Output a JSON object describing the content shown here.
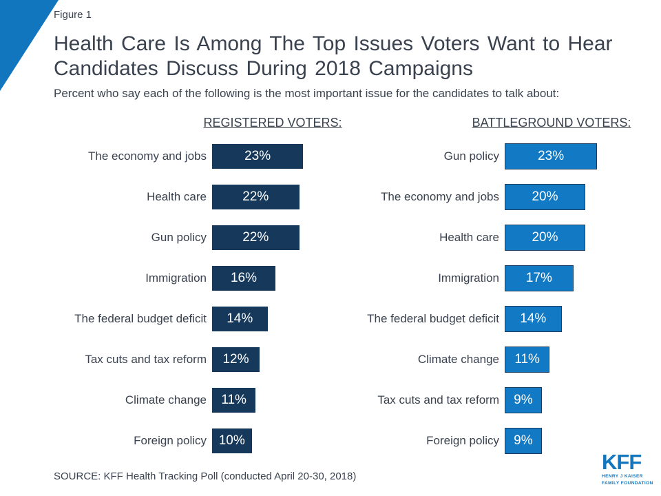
{
  "figure_label": "Figure 1",
  "header": {
    "title_lines": [
      "Health Care Is Among The Top Issues Voters Want to Hear",
      "Candidates Discuss During 2018 Campaigns"
    ],
    "subtitle": "Percent who say each of the following is the most important issue for the candidates to talk about:"
  },
  "colors": {
    "accent_blue": "#1276BE",
    "dark_navy_bar": "#16395B",
    "light_blue_bar": "#1279C4",
    "light_bar_border": "#1E3C5E",
    "text_dark": "#39424E"
  },
  "chart_data": [
    {
      "type": "bar",
      "orientation": "horizontal",
      "title": "REGISTERED VOTERS:",
      "categories": [
        "The economy and jobs",
        "Health care",
        "Gun policy",
        "Immigration",
        "The federal budget deficit",
        "Tax cuts and tax reform",
        "Climate change",
        "Foreign policy"
      ],
      "values": [
        23,
        22,
        22,
        16,
        14,
        12,
        11,
        10
      ],
      "value_suffix": "%",
      "xlim": [
        0,
        25
      ],
      "bar_color": "#16395B",
      "data_labels": "inside, white, centered",
      "grid": false,
      "axes_shown": false
    },
    {
      "type": "bar",
      "orientation": "horizontal",
      "title": "BATTLEGROUND VOTERS:",
      "categories": [
        "Gun policy",
        "The economy and jobs",
        "Health care",
        "Immigration",
        "The federal budget deficit",
        "Climate change",
        "Tax cuts and tax reform",
        "Foreign policy"
      ],
      "values": [
        23,
        20,
        20,
        17,
        14,
        11,
        9,
        9
      ],
      "value_suffix": "%",
      "xlim": [
        0,
        25
      ],
      "bar_color": "#1279C4",
      "bar_border_color": "#1E3C5E",
      "data_labels": "inside, white, centered",
      "grid": false,
      "axes_shown": false
    }
  ],
  "source": "SOURCE: KFF Health Tracking Poll (conducted April 20-30, 2018)",
  "logo": {
    "text": "KFF",
    "sub_line1": "HENRY J KAISER",
    "sub_line2": "FAMILY FOUNDATION"
  }
}
